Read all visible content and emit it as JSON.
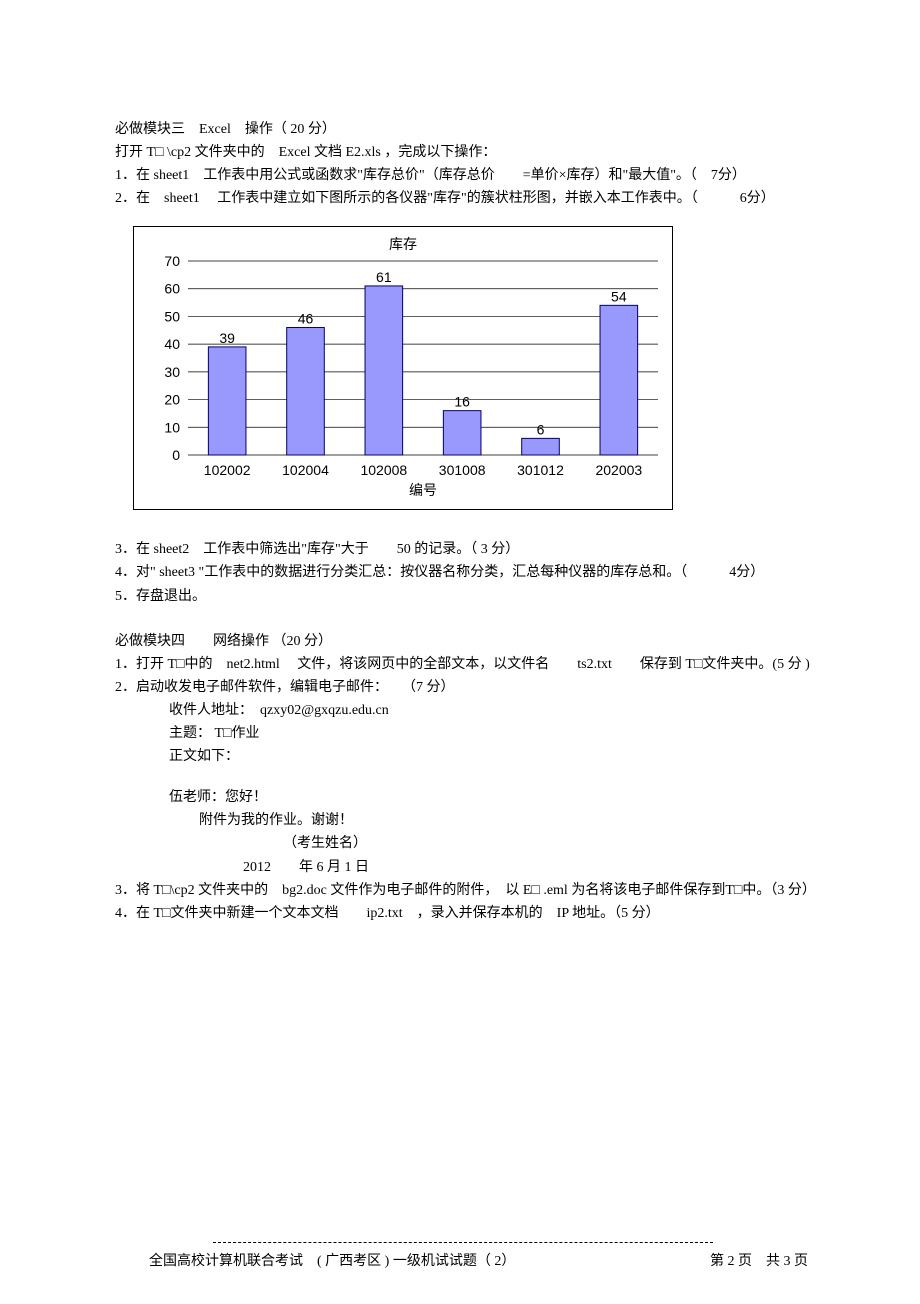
{
  "module3": {
    "heading": "必做模块三　Excel　操作（ 20 分）",
    "open_line": "打开 T□ \\cp2 文件夹中的　Excel 文档 E2.xls ，完成以下操作：",
    "q1": "1．在 sheet1　工作表中用公式或函数求\"库存总价\"（库存总价　　=单价×库存）和\"最大值\"。（　7分）",
    "q2": "2．在　sheet1　 工作表中建立如下图所示的各仪器\"库存\"的簇状柱形图，并嵌入本工作表中。（　　　6分）",
    "q3": "3．在 sheet2　工作表中筛选出\"库存\"大于　　50 的记录。（ 3 分）",
    "q4": "4．对\" sheet3 \"工作表中的数据进行分类汇总：按仪器名称分类，汇总每种仪器的库存总和。（　　　4分）",
    "q5": "5．存盘退出。"
  },
  "chart": {
    "title": "库存",
    "x_label": "编号",
    "categories": [
      "102002",
      "102004",
      "102008",
      "301008",
      "301012",
      "202003"
    ],
    "values": [
      39,
      46,
      61,
      16,
      6,
      54
    ],
    "y_ticks": [
      0,
      10,
      20,
      30,
      40,
      50,
      60,
      70
    ],
    "bar_fill": "#9999fd",
    "bar_stroke": "#000066",
    "plot_bg": "#ffffff"
  },
  "module4": {
    "heading": "必做模块四　　网络操作 （20 分）",
    "q1": "1．打开 T□中的　net2.html　 文件，将该网页中的全部文本，以文件名　　ts2.txt　　保存到 T□文件夹中。(5 分 )",
    "q2": "2．启动收发电子邮件软件，编辑电子邮件：　　（7 分）",
    "recipient_label": "收件人地址：　qzxy02@gxqzu.edu.cn",
    "subject_label": "主题： T□作业",
    "body_label": "正文如下：",
    "greet": "伍老师：您好！",
    "body_line1": "附件为我的作业。谢谢！",
    "sign": "（考生姓名）",
    "date": "2012　　年 6 月 1 日",
    "q3": "3．将 T□\\cp2 文件夹中的　bg2.doc 文件作为电子邮件的附件，　以 E□ .eml 为名将该电子邮件保存到T□中。（3 分）",
    "q4": "4．在 T□文件夹中新建一个文本文档　　ip2.txt　，录入并保存本机的　IP 地址。（5 分）"
  },
  "footer": {
    "left": "全国高校计算机联合考试　( 广西考区 ) 一级机试试题（ 2）",
    "right": "第 2 页　共 3 页"
  }
}
